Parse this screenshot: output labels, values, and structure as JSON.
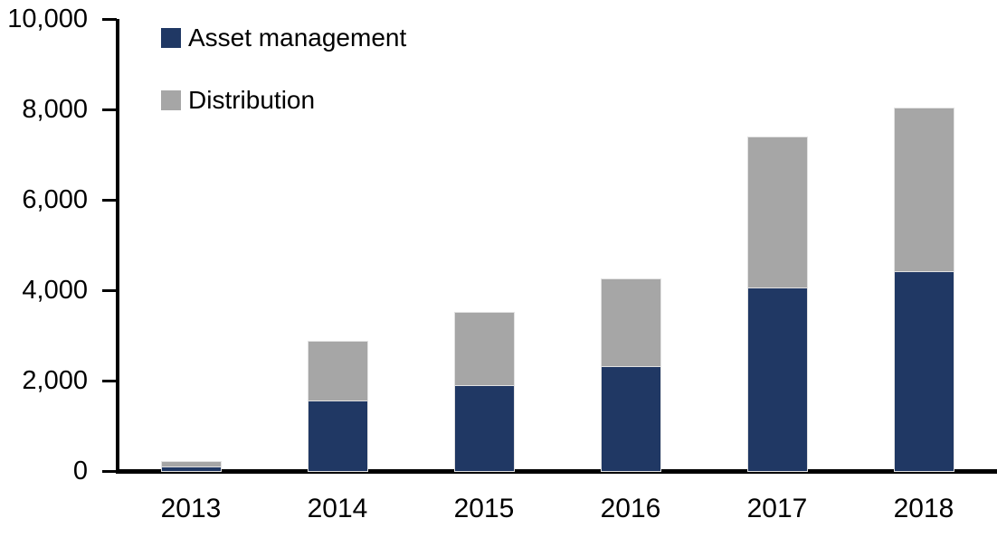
{
  "chart_data": {
    "type": "bar",
    "stacked": true,
    "title": "",
    "xlabel": "",
    "ylabel": "",
    "categories": [
      "2013",
      "2014",
      "2015",
      "2016",
      "2017",
      "2018"
    ],
    "series": [
      {
        "name": "Asset management",
        "color": "#203864",
        "values": [
          100,
          1560,
          1900,
          2330,
          4060,
          4430
        ]
      },
      {
        "name": "Distribution",
        "color": "#A6A6A6",
        "values": [
          100,
          1310,
          1600,
          1920,
          3330,
          3590
        ]
      }
    ],
    "totals": [
      200,
      2870,
      3500,
      4250,
      7390,
      8020
    ],
    "ylim": [
      0,
      10000
    ],
    "ytick_step": 2000,
    "ytick_labels": [
      "0",
      "2,000",
      "4,000",
      "6,000",
      "8,000",
      "10,000"
    ],
    "grid": false,
    "legend_position": "inside-top-left"
  },
  "styles": {
    "background": "#FFFFFF",
    "axis_color": "#000000",
    "text_color": "#000000",
    "bar_edge_color": "#E2E2E2"
  }
}
